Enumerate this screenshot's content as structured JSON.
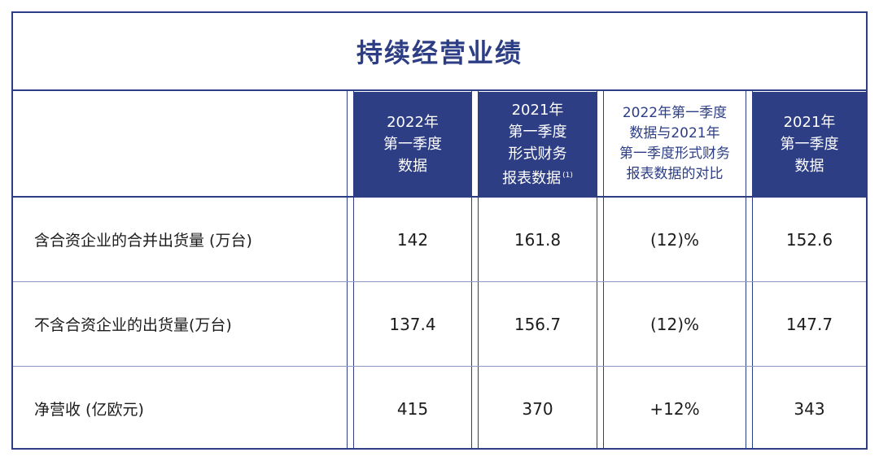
{
  "title": "持续经营业绩",
  "columns": [
    {
      "lines": [
        "2022年",
        "第一季度",
        "数据"
      ],
      "note": ""
    },
    {
      "lines": [
        "2021年",
        "第一季度",
        "形式财务",
        "报表数据"
      ],
      "note": "(1)"
    },
    {
      "lines": [
        "2022年第一季度",
        "数据与2021年",
        "第一季度形式财务",
        "报表数据的对比"
      ],
      "note": ""
    },
    {
      "lines": [
        "2021年",
        "第一季度",
        "数据"
      ],
      "note": ""
    }
  ],
  "rows": [
    {
      "label": "含合资企业的合并出货量 (万台)",
      "values": [
        "142",
        "161.8",
        "(12)%",
        "152.6"
      ]
    },
    {
      "label": "不含合资企业的出货量(万台)",
      "values": [
        "137.4",
        "156.7",
        "(12)%",
        "147.7"
      ]
    },
    {
      "label": "净营收 (亿欧元)",
      "values": [
        "415",
        "370",
        "+12%",
        "343"
      ]
    }
  ]
}
